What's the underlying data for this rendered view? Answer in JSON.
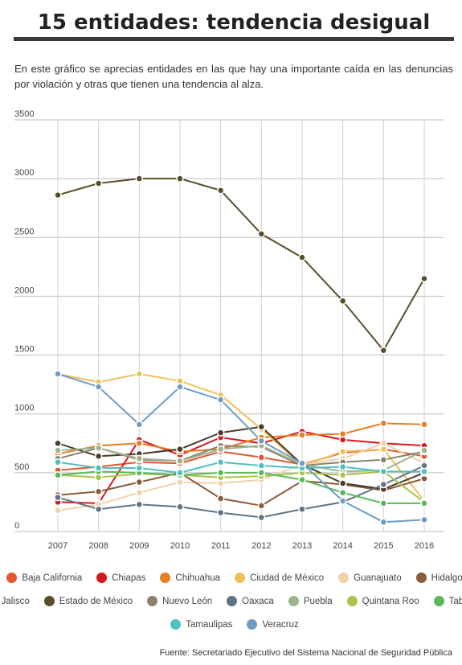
{
  "header": {
    "title": "15 entidades: tendencia desigual",
    "subtitle": "En este gráfico se aprecias entidades en las que hay una importante caída en las denuncias por violación y otras que tienen una tendencia al alza."
  },
  "footer": {
    "source": "Fuente: Secretariado Ejecutivo del Sistema Nacional de Seguridad Pública"
  },
  "chart_data": {
    "type": "line",
    "x": [
      "2007",
      "2008",
      "2009",
      "2010",
      "2011",
      "2012",
      "2013",
      "2014",
      "2015",
      "2016"
    ],
    "ylim": [
      0,
      3500
    ],
    "yticks": [
      0,
      500,
      1000,
      1500,
      2000,
      2500,
      3000,
      3500
    ],
    "grid": true,
    "legend_position": "bottom",
    "series": [
      {
        "name": "Baja California",
        "color": "#e4572e",
        "values": [
          520,
          550,
          590,
          580,
          680,
          630,
          570,
          670,
          700,
          640
        ]
      },
      {
        "name": "Chiapas",
        "color": "#d7191c",
        "values": [
          250,
          240,
          780,
          650,
          800,
          750,
          850,
          780,
          750,
          730
        ]
      },
      {
        "name": "Chihuahua",
        "color": "#e67e22",
        "values": [
          660,
          730,
          750,
          680,
          700,
          800,
          820,
          830,
          920,
          910
        ]
      },
      {
        "name": "Ciudad de México",
        "color": "#f0c05a",
        "values": [
          1340,
          1270,
          1340,
          1280,
          1160,
          870,
          560,
          680,
          700,
          260
        ]
      },
      {
        "name": "Guanajuato",
        "color": "#f0d2a8",
        "values": [
          180,
          230,
          330,
          420,
          410,
          440,
          570,
          620,
          750,
          580
        ]
      },
      {
        "name": "Hidalgo",
        "color": "#8c5a3c",
        "values": [
          310,
          340,
          420,
          500,
          280,
          220,
          430,
          400,
          350,
          450
        ]
      },
      {
        "name": "Jalisco",
        "color": "#4d3b2a",
        "values": [
          750,
          640,
          660,
          700,
          840,
          890,
          570,
          410,
          360,
          500
        ]
      },
      {
        "name": "Estado de México",
        "color": "#5a4e2a",
        "values": [
          2860,
          2960,
          3000,
          3000,
          2900,
          2530,
          2330,
          1960,
          1540,
          2150
        ]
      },
      {
        "name": "Nuevo León",
        "color": "#8a8170",
        "values": [
          620,
          710,
          610,
          600,
          730,
          720,
          560,
          590,
          610,
          680
        ]
      },
      {
        "name": "Oaxaca",
        "color": "#5f7384",
        "values": [
          290,
          190,
          230,
          210,
          160,
          120,
          190,
          250,
          400,
          560
        ]
      },
      {
        "name": "Puebla",
        "color": "#9db58d",
        "values": [
          690,
          710,
          620,
          600,
          700,
          730,
          570,
          510,
          520,
          690
        ]
      },
      {
        "name": "Quintana Roo",
        "color": "#a8c44a",
        "values": [
          480,
          460,
          490,
          480,
          460,
          470,
          500,
          480,
          510,
          250
        ]
      },
      {
        "name": "Tabasco",
        "color": "#5cb85c",
        "values": [
          480,
          510,
          500,
          480,
          500,
          500,
          440,
          330,
          240,
          240
        ]
      },
      {
        "name": "Tamaulipas",
        "color": "#4fc0c0",
        "values": [
          590,
          540,
          540,
          500,
          590,
          560,
          540,
          550,
          510,
          510
        ]
      },
      {
        "name": "Veracruz",
        "color": "#6f9dc2",
        "values": [
          1340,
          1230,
          910,
          1230,
          1120,
          770,
          580,
          260,
          80,
          100
        ]
      }
    ]
  }
}
